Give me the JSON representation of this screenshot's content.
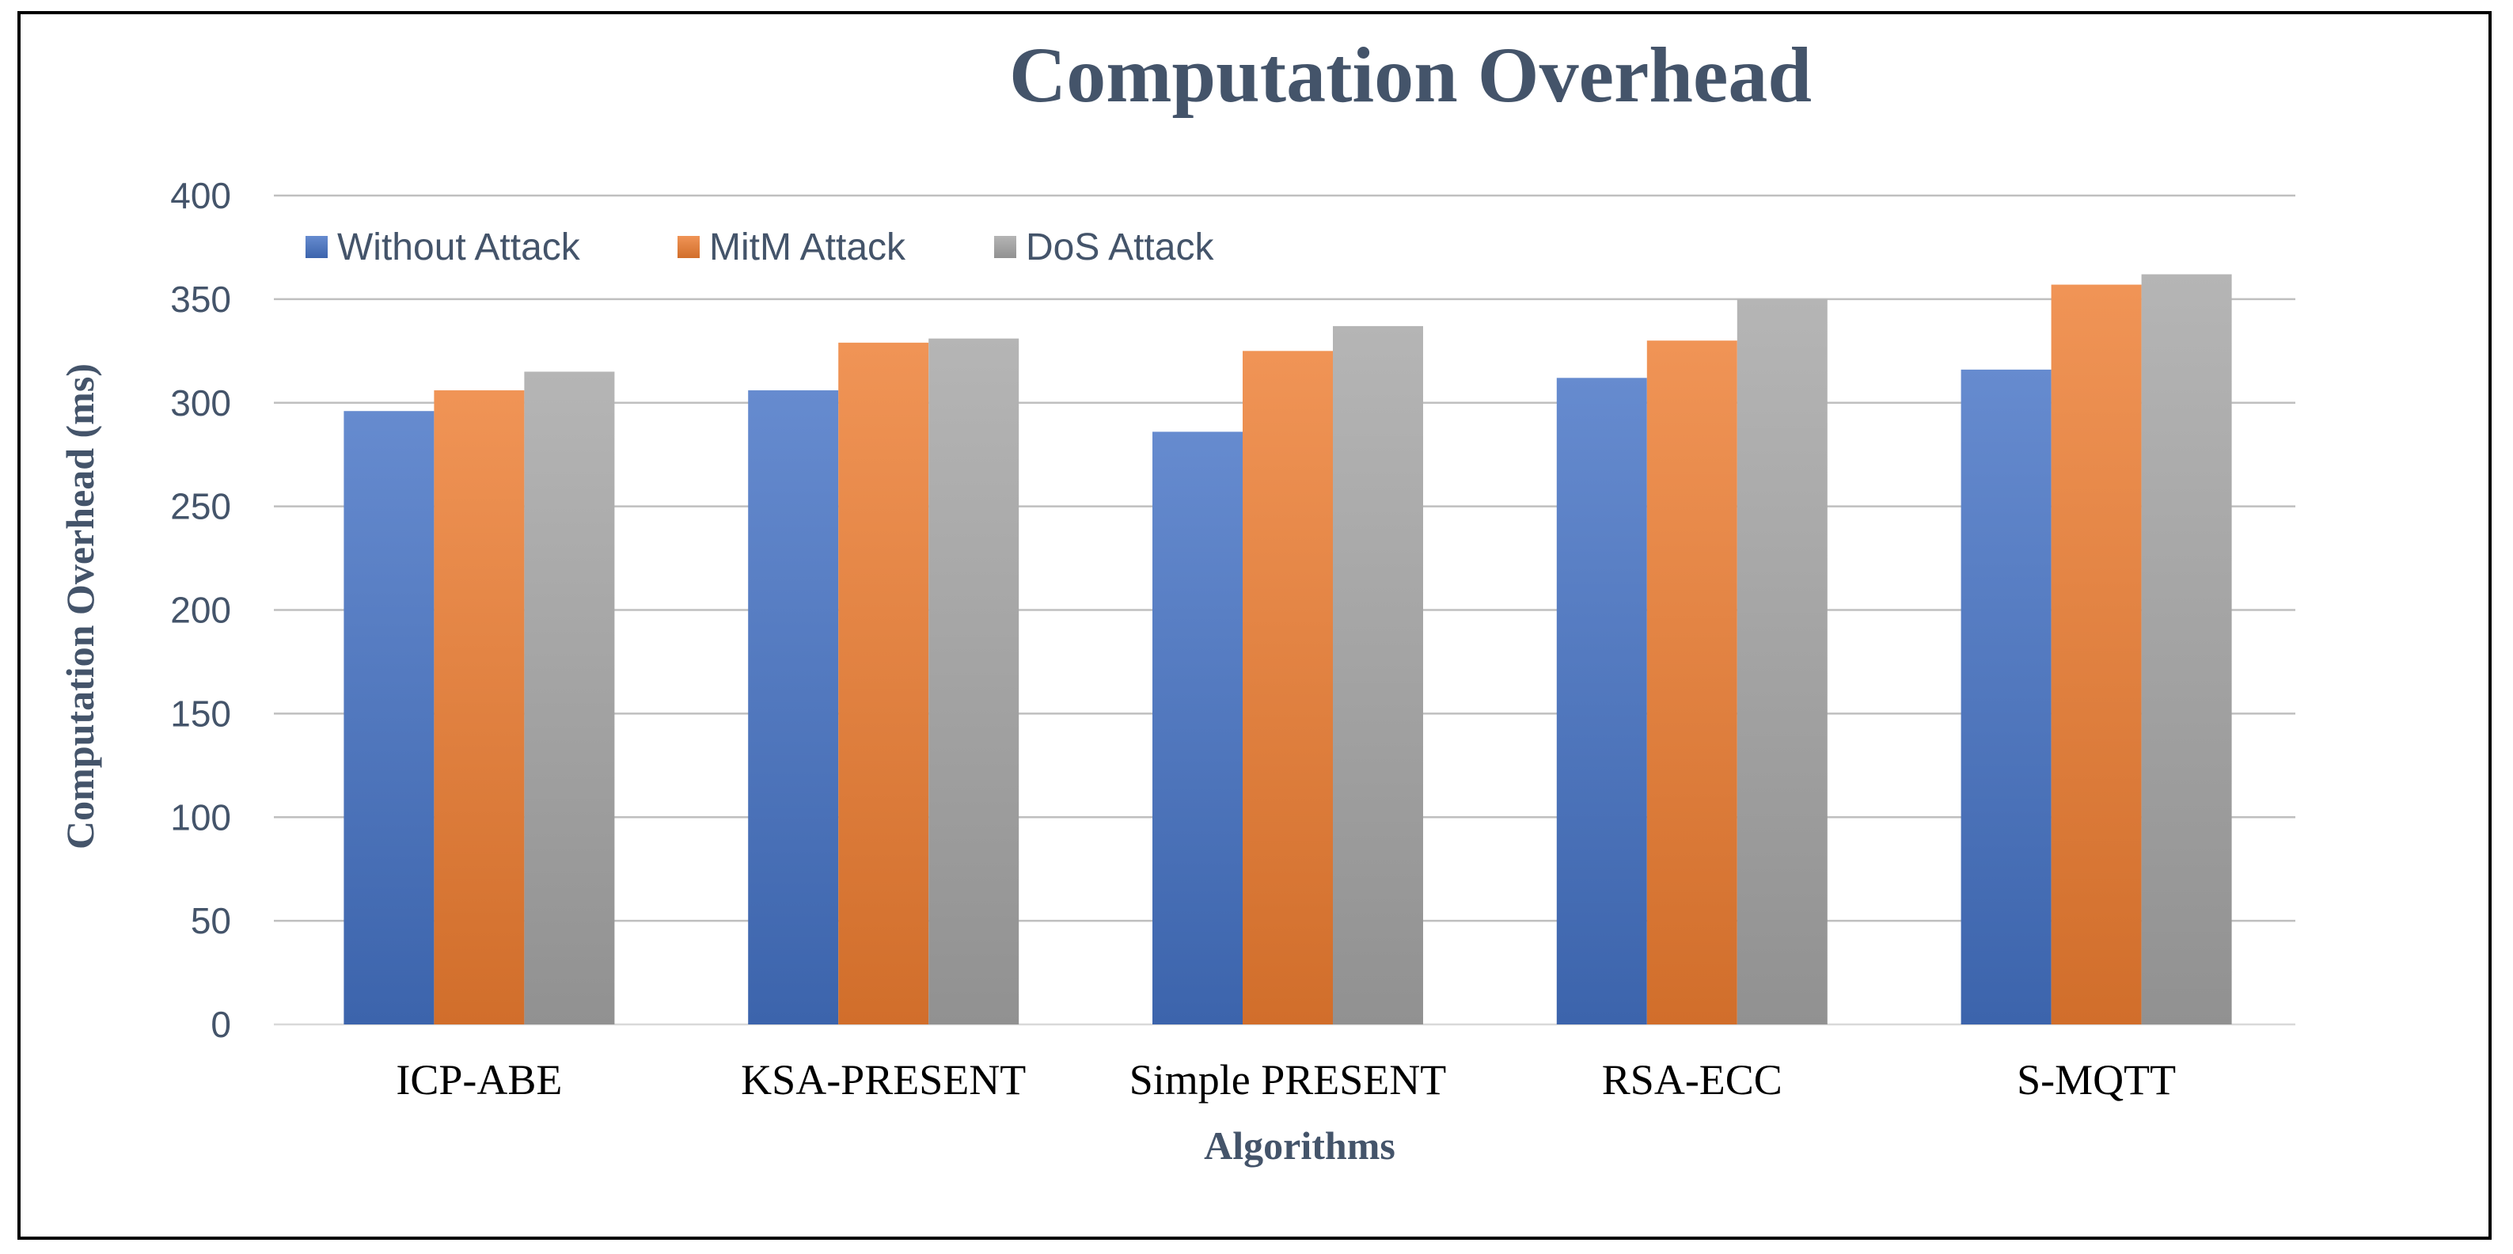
{
  "chart_data": {
    "type": "bar",
    "title": "Computation Overhead",
    "xlabel": "Algorithms",
    "ylabel": "Computation Overhead (ms)",
    "ylim": [
      0,
      400
    ],
    "yticks": [
      0,
      50,
      100,
      150,
      200,
      250,
      300,
      350,
      400
    ],
    "grid": true,
    "legend_position": "top-left",
    "categories": [
      "ICP-ABE",
      "KSA-PRESENT",
      "Simple PRESENT",
      "RSA-ECC",
      "S-MQTT"
    ],
    "series": [
      {
        "name": "Without Attack",
        "values": [
          296,
          306,
          286,
          312,
          316
        ],
        "color": "#4472C4"
      },
      {
        "name": "MitM Attack",
        "values": [
          306,
          329,
          325,
          330,
          357
        ],
        "color": "#ED7D31"
      },
      {
        "name": "DoS Attack",
        "values": [
          315,
          331,
          337,
          350,
          362
        ],
        "color": "#A5A5A5"
      }
    ],
    "colors": {
      "title": "#44546A",
      "axis_title": "#44546A",
      "tick_label": "#44546A",
      "category_label": "#000000",
      "gridline": "#BFBFBF",
      "legend_text": "#44546A"
    }
  }
}
